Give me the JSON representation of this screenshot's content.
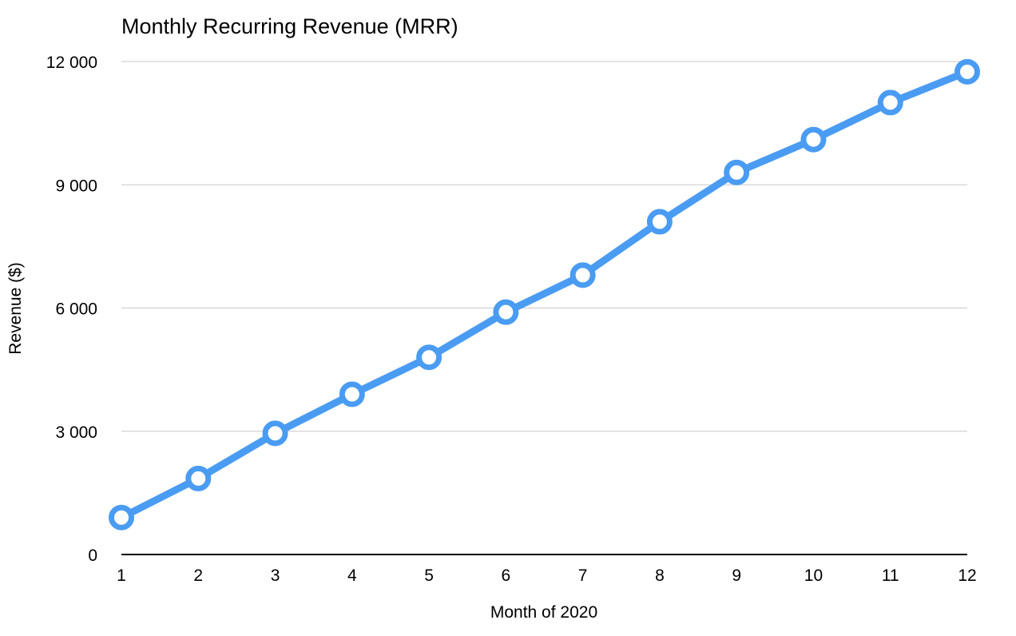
{
  "chart_data": {
    "type": "line",
    "title": "Monthly Recurring Revenue (MRR)",
    "xlabel": "Month of 2020",
    "ylabel": "Revenue ($)",
    "x": [
      1,
      2,
      3,
      4,
      5,
      6,
      7,
      8,
      9,
      10,
      11,
      12
    ],
    "x_tick_labels": [
      "1",
      "2",
      "3",
      "4",
      "5",
      "6",
      "7",
      "8",
      "9",
      "10",
      "11",
      "12"
    ],
    "y_ticks": [
      0,
      3000,
      6000,
      9000,
      12000
    ],
    "y_tick_labels": [
      "0",
      "3 000",
      "6 000",
      "9 000",
      "12 000"
    ],
    "ylim": [
      0,
      12000
    ],
    "grid": true,
    "series": [
      {
        "values": [
          900,
          1850,
          2950,
          3900,
          4800,
          5900,
          6800,
          8100,
          9300,
          10100,
          11000,
          11750
        ],
        "color": "#4a9cf3",
        "marker": "open-circle"
      }
    ]
  }
}
